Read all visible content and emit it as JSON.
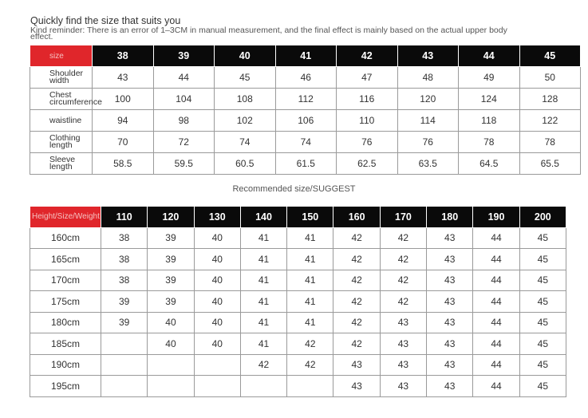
{
  "title": "Quickly find the size that suits you",
  "reminder": "Kind reminder: There is an error of 1–3CM in manual measurement, and the final effect is mainly based on the actual upper body effect.",
  "colors": {
    "header_bg": "#0a0a0a",
    "corner_bg": "#e0262b"
  },
  "size_table": {
    "corner": "size",
    "columns": [
      "38",
      "39",
      "40",
      "41",
      "42",
      "43",
      "44",
      "45"
    ],
    "rows": [
      {
        "label": "Shoulder width",
        "values": [
          "43",
          "44",
          "45",
          "46",
          "47",
          "48",
          "49",
          "50"
        ]
      },
      {
        "label": "Chest circumference",
        "values": [
          "100",
          "104",
          "108",
          "112",
          "116",
          "120",
          "124",
          "128"
        ]
      },
      {
        "label": "waistline",
        "values": [
          "94",
          "98",
          "102",
          "106",
          "110",
          "114",
          "118",
          "122"
        ]
      },
      {
        "label": "Clothing length",
        "values": [
          "70",
          "72",
          "74",
          "74",
          "76",
          "76",
          "78",
          "78"
        ]
      },
      {
        "label": "Sleeve length",
        "values": [
          "58.5",
          "59.5",
          "60.5",
          "61.5",
          "62.5",
          "63.5",
          "64.5",
          "65.5"
        ]
      }
    ]
  },
  "suggest_title": "Recommended size/SUGGEST",
  "suggest_table": {
    "corner": "Height/Size/Weight",
    "columns": [
      "110",
      "120",
      "130",
      "140",
      "150",
      "160",
      "170",
      "180",
      "190",
      "200"
    ],
    "rows": [
      {
        "label": "160cm",
        "values": [
          "38",
          "39",
          "40",
          "41",
          "41",
          "42",
          "42",
          "43",
          "44",
          "45"
        ]
      },
      {
        "label": "165cm",
        "values": [
          "38",
          "39",
          "40",
          "41",
          "41",
          "42",
          "42",
          "43",
          "44",
          "45"
        ]
      },
      {
        "label": "170cm",
        "values": [
          "38",
          "39",
          "40",
          "41",
          "41",
          "42",
          "42",
          "43",
          "44",
          "45"
        ]
      },
      {
        "label": "175cm",
        "values": [
          "39",
          "39",
          "40",
          "41",
          "41",
          "42",
          "42",
          "43",
          "44",
          "45"
        ]
      },
      {
        "label": "180cm",
        "values": [
          "39",
          "40",
          "40",
          "41",
          "41",
          "42",
          "43",
          "43",
          "44",
          "45"
        ]
      },
      {
        "label": "185cm",
        "values": [
          "",
          "40",
          "40",
          "41",
          "42",
          "42",
          "43",
          "43",
          "44",
          "45"
        ]
      },
      {
        "label": "190cm",
        "values": [
          "",
          "",
          "",
          "42",
          "42",
          "43",
          "43",
          "43",
          "44",
          "45"
        ]
      },
      {
        "label": "195cm",
        "values": [
          "",
          "",
          "",
          "",
          "",
          "43",
          "43",
          "43",
          "44",
          "45"
        ]
      }
    ]
  }
}
